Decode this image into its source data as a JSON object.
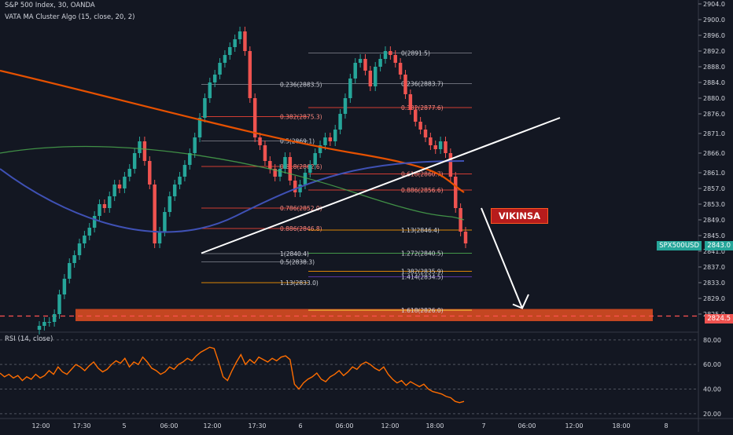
{
  "header": {
    "title": "S&P 500 Index, 30, OANDA",
    "indicator": "VATA MA Cluster Algo (15, close, 20, 2)"
  },
  "rsi_label": "RSI (14, close)",
  "annotation_text": "VIKINSA",
  "price_badges": {
    "symbol": "SPX500USD",
    "current": "2843.0",
    "target": "2824.5"
  },
  "colors": {
    "background": "#131722",
    "bull": "#26a69a",
    "bear": "#ef5350",
    "rsi": "#ff6d00",
    "target_zone": "#ff5722",
    "annotation_bg": "#b71c1c"
  },
  "chart_data": [
    {
      "type": "candlestick",
      "title": "S&P 500 Index, 30, OANDA",
      "y_ticks": [
        "2904.0",
        "2900.0",
        "2896.0",
        "2892.0",
        "2888.0",
        "2884.0",
        "2880.0",
        "2876.0",
        "2871.0",
        "2866.0",
        "2861.0",
        "2857.0",
        "2853.0",
        "2849.0",
        "2845.0",
        "2841.0",
        "2837.0",
        "2833.0",
        "2829.0",
        "2825.0"
      ],
      "x_ticks": [
        "12:00",
        "17:30",
        "5",
        "06:00",
        "12:00",
        "17:30",
        "6",
        "06:00",
        "12:00",
        "18:00",
        "7",
        "06:00",
        "12:00",
        "18:00",
        "8"
      ],
      "ylim": [
        2821.0,
        2905.0
      ],
      "close_approx": [
        2822,
        2823,
        2823,
        2825,
        2830,
        2834,
        2838,
        2840,
        2843,
        2845,
        2847,
        2850,
        2853,
        2852,
        2855,
        2858,
        2857,
        2860,
        2862,
        2866,
        2869,
        2864,
        2858,
        2843,
        2846,
        2851,
        2855,
        2858,
        2860,
        2863,
        2866,
        2870,
        2875,
        2880,
        2884,
        2886,
        2889,
        2891,
        2893,
        2895,
        2897,
        2892,
        2880,
        2870,
        2868,
        2864,
        2862,
        2860,
        2862,
        2865,
        2859,
        2856,
        2858,
        2861,
        2863,
        2866,
        2868,
        2870,
        2869,
        2872,
        2876,
        2880,
        2885,
        2889,
        2890,
        2887,
        2883,
        2888,
        2890,
        2892,
        2891,
        2889,
        2886,
        2881,
        2877,
        2874,
        2872,
        2870,
        2868,
        2867,
        2869,
        2866,
        2860,
        2852,
        2846,
        2843
      ],
      "fibonacci_levels": [
        {
          "label": "0.236(2883.5)",
          "price": 2883.5
        },
        {
          "label": "0.382(2875.3)",
          "price": 2875.3
        },
        {
          "label": "0.5(2869.1)",
          "price": 2869.1
        },
        {
          "label": "0.618(2862.6)",
          "price": 2862.6
        },
        {
          "label": "0.786(2852.0)",
          "price": 2852.0
        },
        {
          "label": "0.886(2846.8)",
          "price": 2846.8
        },
        {
          "label": "1(2840.4)",
          "price": 2840.4
        },
        {
          "label": "0.5(2838.3)",
          "price": 2838.3
        },
        {
          "label": "1.13(2833.0)",
          "price": 2833.0
        },
        {
          "label": "0(2891.5)",
          "price": 2891.5
        },
        {
          "label": "0.236(2883.7)",
          "price": 2883.7
        },
        {
          "label": "0.382(2877.6)",
          "price": 2877.6
        },
        {
          "label": "0.618(2860.7)",
          "price": 2860.7
        },
        {
          "label": "0.886(2856.6)",
          "price": 2856.6
        },
        {
          "label": "1.13(2846.4)",
          "price": 2846.4
        },
        {
          "label": "1.272(2840.5)",
          "price": 2840.5
        },
        {
          "label": "1.382(2835.9)",
          "price": 2835.9
        },
        {
          "label": "1.414(2834.5)",
          "price": 2834.5
        },
        {
          "label": "1.618(2826.0)",
          "price": 2826.0
        }
      ],
      "target_price": 2824.5
    },
    {
      "type": "line",
      "title": "RSI (14, close)",
      "y_ticks": [
        "80.00",
        "60.00",
        "40.00",
        "20.00"
      ],
      "ylim": [
        18,
        85
      ],
      "values": [
        53,
        50,
        52,
        49,
        51,
        47,
        50,
        48,
        52,
        49,
        51,
        55,
        52,
        58,
        54,
        52,
        56,
        60,
        58,
        55,
        59,
        62,
        57,
        54,
        56,
        60,
        63,
        61,
        65,
        58,
        62,
        60,
        66,
        62,
        57,
        55,
        52,
        54,
        58,
        56,
        60,
        62,
        65,
        63,
        67,
        70,
        72,
        74,
        73,
        62,
        50,
        47,
        55,
        62,
        68,
        60,
        64,
        61,
        66,
        64,
        62,
        65,
        63,
        66,
        67,
        64,
        44,
        40,
        45,
        48,
        50,
        53,
        48,
        46,
        50,
        52,
        55,
        51,
        54,
        58,
        56,
        60,
        62,
        60,
        57,
        55,
        58,
        52,
        48,
        45,
        47,
        43,
        46,
        44,
        42,
        44,
        40,
        38,
        37,
        36,
        34,
        33,
        30,
        29,
        30
      ]
    }
  ]
}
